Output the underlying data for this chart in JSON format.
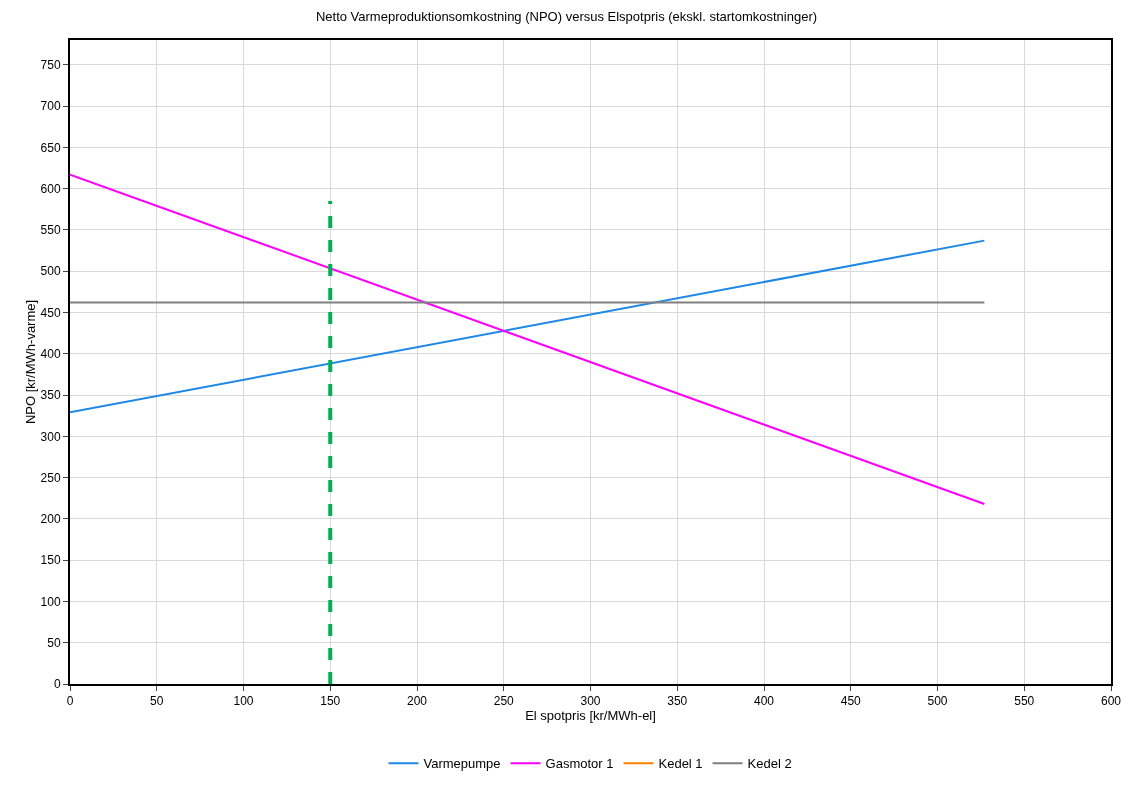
{
  "chart_data": {
    "type": "line",
    "title": "Netto Varmeproduktionsomkostning (NPO) versus Elspotpris (ekskl. startomkostninger)",
    "xlabel": "El spotpris [kr/MWh-el]",
    "ylabel": "NPO [kr/MWh-varme]",
    "x": [
      0,
      527
    ],
    "series": [
      {
        "name": "Varmepumpe",
        "color": "#1e88e5",
        "values": [
          329,
          537
        ]
      },
      {
        "name": "Gasmotor 1",
        "color": "#ff00ff",
        "values": [
          617,
          218
        ]
      },
      {
        "name": "Kedel 1",
        "color": "#ff8000",
        "values": [
          null,
          null
        ]
      },
      {
        "name": "Kedel 2",
        "color": "#808080",
        "values": [
          462,
          462
        ]
      },
      {
        "color": "#00b050",
        "x": [
          150,
          150
        ],
        "values": [
          0,
          585
        ],
        "line_style": "dashed"
      }
    ],
    "xlim": [
      0,
      600
    ],
    "xticks": [
      0,
      50,
      100,
      150,
      200,
      250,
      300,
      350,
      400,
      450,
      500,
      550,
      600
    ],
    "ylim": [
      0,
      780
    ],
    "yticks": [
      0,
      50,
      100,
      150,
      200,
      250,
      300,
      350,
      400,
      450,
      500,
      550,
      600,
      650,
      700,
      750
    ],
    "grid": true,
    "legend": "bottom",
    "marker": "none",
    "line_style": "solid"
  }
}
